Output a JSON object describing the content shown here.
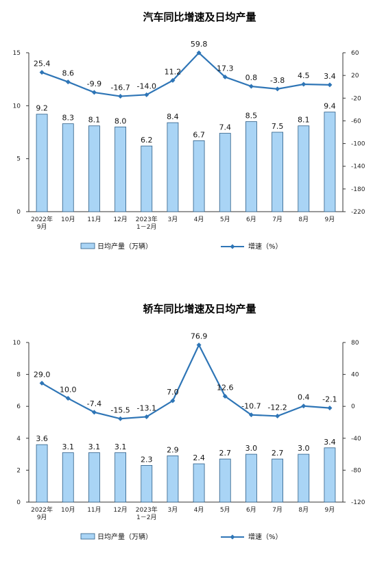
{
  "chart_data": [
    {
      "type": "bar",
      "title": "汽车同比增速及日均产量",
      "categories": [
        "2022年\n9月",
        "10月",
        "11月",
        "12月",
        "2023年\n1－2月",
        "3月",
        "4月",
        "5月",
        "6月",
        "7月",
        "8月",
        "9月"
      ],
      "series": [
        {
          "name": "日均产量（万辆）",
          "type": "bar",
          "axis": "left",
          "values": [
            9.2,
            8.3,
            8.1,
            8.0,
            6.2,
            8.4,
            6.7,
            7.4,
            8.5,
            7.5,
            8.1,
            9.4
          ],
          "labels": [
            "9.2",
            "8.3",
            "8.1",
            "8.0",
            "6.2",
            "8.4",
            "6.7",
            "7.4",
            "8.5",
            "7.5",
            "8.1",
            "9.4"
          ]
        },
        {
          "name": "增速（%）",
          "type": "line",
          "axis": "right",
          "values": [
            25.4,
            8.6,
            -9.9,
            -16.7,
            -14.0,
            11.2,
            59.8,
            17.3,
            0.8,
            -3.8,
            4.5,
            3.4
          ],
          "labels": [
            "25.4",
            "8.6",
            "-9.9",
            "-16.7",
            "-14.0",
            "11.2",
            "59.8",
            "17.3",
            "0.8",
            "-3.8",
            "4.5",
            "3.4"
          ]
        }
      ],
      "y_left": {
        "range": [
          0,
          15
        ],
        "ticks": [
          "0",
          "5",
          "10",
          "15"
        ]
      },
      "y_right": {
        "range": [
          -220,
          60
        ],
        "ticks": [
          "60",
          "20",
          "-20",
          "-60",
          "-100",
          "-140",
          "-180",
          "-220"
        ]
      },
      "legend_position": "bottom",
      "colors": {
        "bar_fill": "#a9d4f5",
        "bar_stroke": "#2c5d86",
        "line": "#2e75b6"
      }
    },
    {
      "type": "bar",
      "title": "轿车同比增速及日均产量",
      "categories": [
        "2022年\n9月",
        "10月",
        "11月",
        "12月",
        "2023年\n1－2月",
        "3月",
        "4月",
        "5月",
        "6月",
        "7月",
        "8月",
        "9月"
      ],
      "series": [
        {
          "name": "日均产量（万辆）",
          "type": "bar",
          "axis": "left",
          "values": [
            3.6,
            3.1,
            3.1,
            3.1,
            2.3,
            2.9,
            2.4,
            2.7,
            3.0,
            2.7,
            3.0,
            3.4
          ],
          "labels": [
            "3.6",
            "3.1",
            "3.1",
            "3.1",
            "2.3",
            "2.9",
            "2.4",
            "2.7",
            "3.0",
            "2.7",
            "3.0",
            "3.4"
          ]
        },
        {
          "name": "增速（%）",
          "type": "line",
          "axis": "right",
          "values": [
            29.0,
            10.0,
            -7.4,
            -15.5,
            -13.1,
            7.0,
            76.9,
            12.6,
            -10.7,
            -12.2,
            0.4,
            -2.1
          ],
          "labels": [
            "29.0",
            "10.0",
            "-7.4",
            "-15.5",
            "-13.1",
            "7.0",
            "76.9",
            "12.6",
            "-10.7",
            "-12.2",
            "0.4",
            "-2.1"
          ]
        }
      ],
      "y_left": {
        "range": [
          0,
          10
        ],
        "ticks": [
          "0",
          "2",
          "4",
          "6",
          "8",
          "10"
        ]
      },
      "y_right": {
        "range": [
          -120,
          80
        ],
        "ticks": [
          "80",
          "40",
          "0",
          "-40",
          "-80",
          "-120"
        ]
      },
      "legend_position": "bottom",
      "colors": {
        "bar_fill": "#a9d4f5",
        "bar_stroke": "#2c5d86",
        "line": "#2e75b6"
      }
    }
  ]
}
